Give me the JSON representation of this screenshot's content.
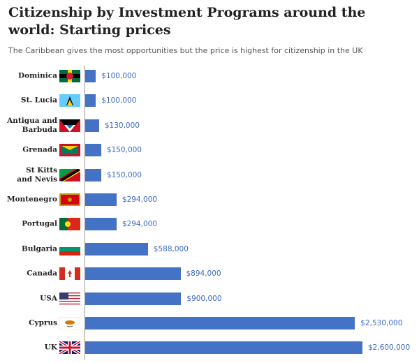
{
  "chart_data": {
    "type": "bar",
    "orientation": "horizontal",
    "title": "Citizenship by Investment Programs around the world: Starting prices",
    "subtitle": "The Caribbean gives the most opportunities but the price is highest for citizenship in the UK",
    "categories": [
      "Dominica",
      "St. Lucia",
      "Antigua and\nBarbuda",
      "Grenada",
      "St Kitts\nand Nevis",
      "Montenegro",
      "Portugal",
      "Bulgaria",
      "Canada",
      "USA",
      "Cyprus",
      "UK"
    ],
    "values": [
      100000,
      100000,
      130000,
      150000,
      150000,
      294000,
      294000,
      588000,
      894000,
      900000,
      2530000,
      2600000
    ],
    "value_labels": [
      "$100,000",
      "$100,000",
      "$130,000",
      "$150,000",
      "$150,000",
      "$294,000",
      "$294,000",
      "$588,000",
      "$894,000",
      "$900,000",
      "$2,530,000",
      "$2,600,000"
    ],
    "color": "#4472c4"
  }
}
